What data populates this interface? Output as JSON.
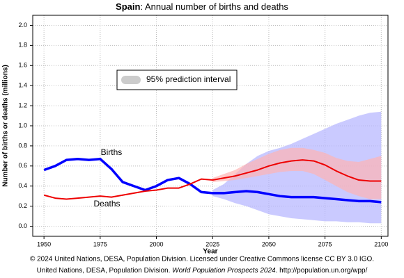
{
  "chart_data": {
    "type": "line",
    "title": [
      "Spain",
      ": Annual number of births and deaths"
    ],
    "x_label": "Year",
    "y_label": "Number of births or deaths (millions)",
    "xlim": [
      1945,
      2103
    ],
    "ylim": [
      -0.1,
      2.1
    ],
    "xticks": [
      1950,
      1975,
      2000,
      2025,
      2050,
      2075,
      2100
    ],
    "yticks": [
      {
        "value": 0,
        "label": "0.0"
      },
      {
        "value": 0.2,
        "label": "0.2"
      },
      {
        "value": 0.4,
        "label": "0.4"
      },
      {
        "value": 0.6,
        "label": "0.6"
      },
      {
        "value": 0.8,
        "label": "0.8"
      },
      {
        "value": 1,
        "label": "1.0"
      },
      {
        "value": 1.2,
        "label": "1.2"
      },
      {
        "value": 1.4,
        "label": "1.4"
      },
      {
        "value": 1.6,
        "label": "1.6"
      },
      {
        "value": 1.8,
        "label": "1.8"
      },
      {
        "value": 2,
        "label": "2.0"
      }
    ],
    "grid": true,
    "x": [
      1950,
      1955,
      1960,
      1965,
      1970,
      1975,
      1980,
      1985,
      1990,
      1995,
      2000,
      2005,
      2010,
      2015,
      2020,
      2025,
      2030,
      2035,
      2040,
      2045,
      2050,
      2055,
      2060,
      2065,
      2070,
      2075,
      2080,
      2085,
      2090,
      2095,
      2100
    ],
    "series": [
      {
        "name": "Births",
        "color": "#0000ff",
        "values": [
          0.56,
          0.6,
          0.66,
          0.67,
          0.66,
          0.67,
          0.57,
          0.44,
          0.4,
          0.36,
          0.4,
          0.46,
          0.48,
          0.42,
          0.34,
          0.33,
          0.33,
          0.34,
          0.35,
          0.34,
          0.32,
          0.3,
          0.29,
          0.29,
          0.29,
          0.28,
          0.27,
          0.26,
          0.25,
          0.25,
          0.24
        ]
      },
      {
        "name": "Deaths",
        "color": "#ee0000",
        "values": [
          0.31,
          0.28,
          0.27,
          0.28,
          0.29,
          0.3,
          0.29,
          0.31,
          0.33,
          0.35,
          0.36,
          0.38,
          0.38,
          0.42,
          0.47,
          0.46,
          0.48,
          0.5,
          0.53,
          0.56,
          0.6,
          0.63,
          0.65,
          0.66,
          0.65,
          0.61,
          0.55,
          0.5,
          0.46,
          0.45,
          0.45
        ]
      }
    ],
    "band_x": [
      2025,
      2030,
      2035,
      2040,
      2045,
      2050,
      2055,
      2060,
      2065,
      2070,
      2075,
      2080,
      2085,
      2090,
      2095,
      2100
    ],
    "bands": [
      {
        "color": "#b4b4ff",
        "lower": [
          0.3,
          0.27,
          0.23,
          0.2,
          0.16,
          0.12,
          0.1,
          0.08,
          0.07,
          0.06,
          0.05,
          0.05,
          0.04,
          0.04,
          0.03,
          0.03
        ],
        "upper": [
          0.36,
          0.42,
          0.52,
          0.62,
          0.7,
          0.75,
          0.78,
          0.82,
          0.87,
          0.92,
          0.97,
          1.02,
          1.06,
          1.1,
          1.13,
          1.14
        ]
      },
      {
        "color": "#ffb4b4",
        "lower": [
          0.44,
          0.45,
          0.46,
          0.48,
          0.5,
          0.52,
          0.54,
          0.55,
          0.55,
          0.52,
          0.46,
          0.4,
          0.34,
          0.3,
          0.27,
          0.27
        ],
        "upper": [
          0.48,
          0.52,
          0.56,
          0.62,
          0.67,
          0.72,
          0.76,
          0.78,
          0.78,
          0.76,
          0.73,
          0.68,
          0.65,
          0.64,
          0.67,
          0.7
        ]
      }
    ],
    "legend": {
      "label": "95% prediction interval",
      "color": "#cccccc"
    },
    "footer": [
      "© 2024 United Nations, DESA, Population Division. Licensed under Creative Commons license CC BY 3.0 IGO.",
      [
        "United Nations, DESA, Population Division. ",
        "World Population Prospects 2024",
        ". http://population.un.org/wpp/"
      ]
    ]
  }
}
